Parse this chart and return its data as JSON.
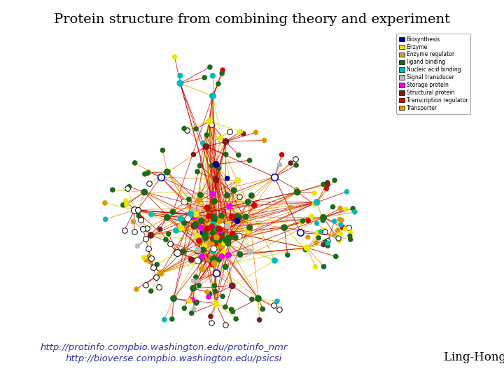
{
  "title": "Protein structure from combining theory and experiment",
  "title_fontsize": 14,
  "url1": "http://protinfo.compbio.washington.edu/protinfo_nmr",
  "url2": "http://bioverse.compbio.washington.edu/psicsi",
  "author": "Ling-Hong Hung",
  "url_color": "#3333aa",
  "url_fontsize": 9.5,
  "author_fontsize": 12,
  "background_color": "#ffffff",
  "legend_items": [
    {
      "label": "Biosynthesis",
      "color": "#00008b"
    },
    {
      "label": "Enzyme",
      "color": "#e8e800"
    },
    {
      "label": "Enzyme regulator",
      "color": "#c8a030"
    },
    {
      "label": "ligand binding",
      "color": "#1a6b1a"
    },
    {
      "label": "Nucleic acid binding",
      "color": "#00bbbb"
    },
    {
      "label": "Signal transducer",
      "color": "#bbbbbb"
    },
    {
      "label": "Storage protein",
      "color": "#ee00ee"
    },
    {
      "label": "Structural protein",
      "color": "#7b1c1c"
    },
    {
      "label": "Transcription regulator",
      "color": "#dd0000"
    },
    {
      "label": "Transporter",
      "color": "#dd9900"
    }
  ],
  "node_colors": {
    "biosynthesis": "#00008b",
    "enzyme": "#e8e800",
    "enzyme_reg": "#c8a030",
    "ligand": "#1a6b1a",
    "nucleic": "#00bbbb",
    "signal": "#bbbbbb",
    "storage": "#ee00ee",
    "structural": "#7b1c1c",
    "transcription": "#dd0000",
    "transporter": "#dd9900",
    "unknown": "#ffffff"
  },
  "edge_red": "#cc0000",
  "edge_orange": "#ee8800",
  "edge_yellow": "#cccc00",
  "network_seed": 77
}
